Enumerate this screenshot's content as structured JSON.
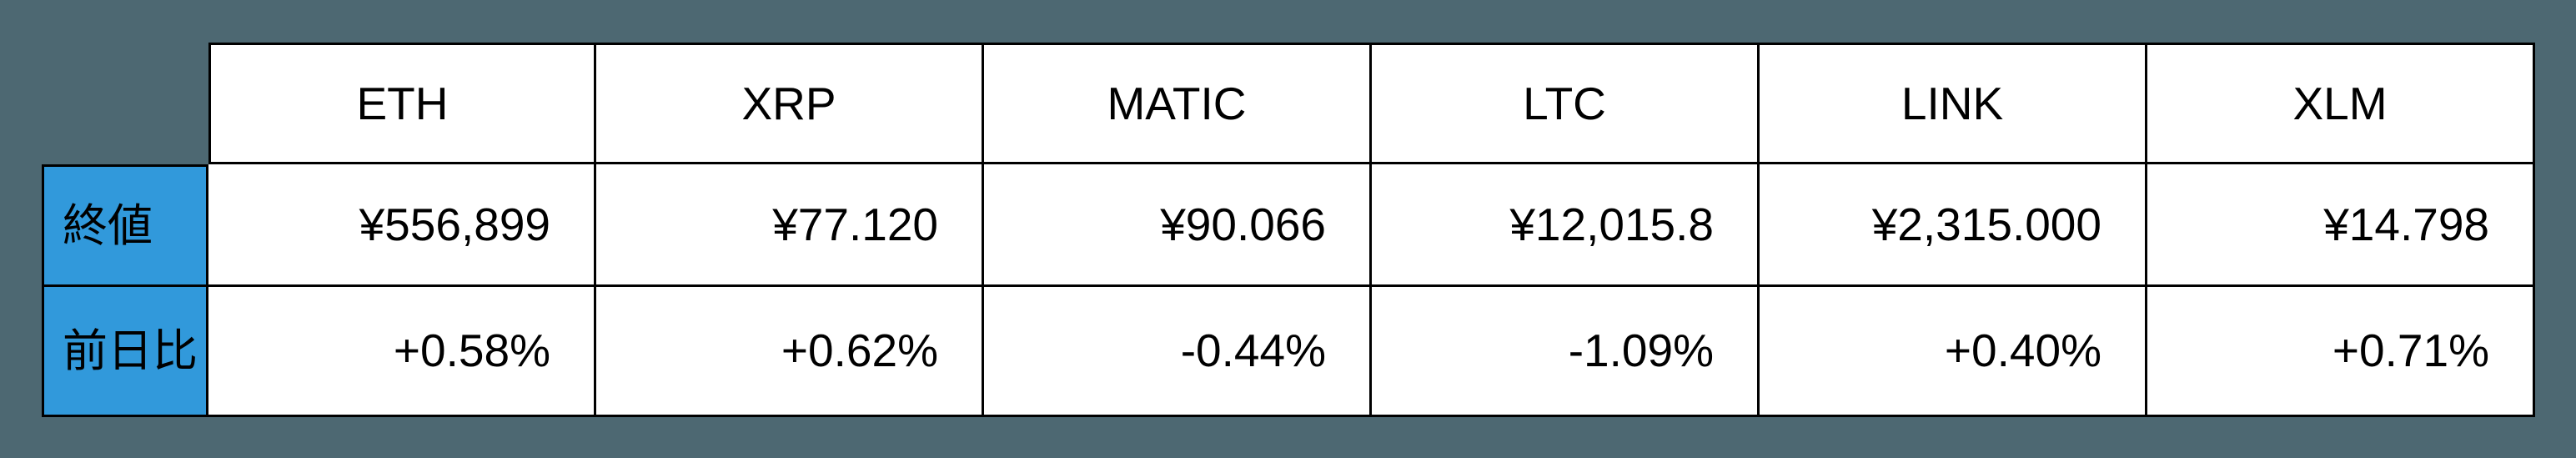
{
  "meta": {
    "background_color": "#4D6872",
    "accent_blue": "#3199DB",
    "border_color": "#000000",
    "text_color": "#000000"
  },
  "table": {
    "columns": [
      "ETH",
      "XRP",
      "MATIC",
      "LTC",
      "LINK",
      "XLM"
    ],
    "rows": [
      {
        "label": "終値",
        "values": [
          "¥556,899",
          "¥77.120",
          "¥90.066",
          "¥12,015.8",
          "¥2,315.000",
          "¥14.798"
        ]
      },
      {
        "label": "前日比",
        "values": [
          "+0.58%",
          "+0.62%",
          "-0.44%",
          "-1.09%",
          "+0.40%",
          "+0.71%"
        ]
      }
    ]
  },
  "chart_data": {
    "type": "table",
    "columns": [
      "",
      "ETH",
      "XRP",
      "MATIC",
      "LTC",
      "LINK",
      "XLM"
    ],
    "rows": [
      [
        "終値",
        "¥556,899",
        "¥77.120",
        "¥90.066",
        "¥12,015.8",
        "¥2,315.000",
        "¥14.798"
      ],
      [
        "前日比",
        "+0.58%",
        "+0.62%",
        "-0.44%",
        "-1.09%",
        "+0.40%",
        "+0.71%"
      ]
    ],
    "title": "",
    "legend": "none",
    "grid": "solid black cell borders",
    "header_row_background": "#FFFFFF",
    "label_column_background": "#3199DB"
  }
}
